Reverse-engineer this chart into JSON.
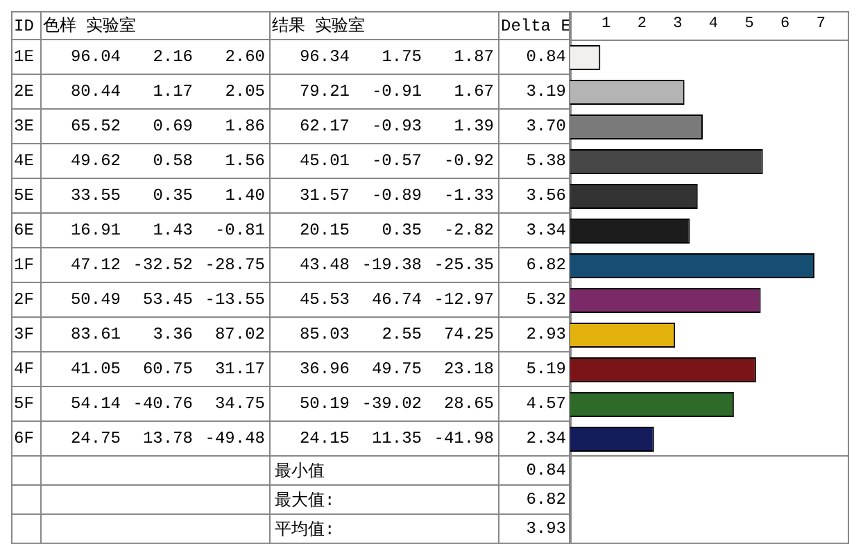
{
  "chart_data": {
    "type": "bar",
    "orientation": "horizontal",
    "categories": [
      "1E",
      "2E",
      "3E",
      "4E",
      "5E",
      "6E",
      "1F",
      "2F",
      "3F",
      "4F",
      "5F",
      "6F"
    ],
    "values": [
      0.84,
      3.19,
      3.7,
      5.38,
      3.56,
      3.34,
      6.82,
      5.32,
      2.93,
      5.19,
      4.57,
      2.34
    ],
    "value_labels": [
      "0.84",
      "3.19",
      "3.70",
      "5.38",
      "3.56",
      "3.34",
      "6.82",
      "5.32",
      "2.93",
      "5.19",
      "4.57",
      "2.34"
    ],
    "colors": [
      "#f2f0ee",
      "#b4b4b4",
      "#7a7a7a",
      "#474747",
      "#333333",
      "#1c1c1c",
      "#154e72",
      "#7b2a68",
      "#e3b20c",
      "#7a1416",
      "#2e6b28",
      "#141c5c"
    ],
    "x2lim": [
      0,
      7.75
    ],
    "x2ticks": [
      1,
      2,
      3,
      4,
      5,
      6,
      7
    ],
    "grid": false,
    "legend": false,
    "annotations": [
      "ID",
      "色样 实验室",
      "结果 实验室",
      "Delta E",
      "96.04",
      "2.16",
      "2.60",
      "96.34",
      "1.75",
      "1.87",
      "80.44",
      "1.17",
      "2.05",
      "79.21",
      "-0.91",
      "1.67",
      "65.52",
      "0.69",
      "1.86",
      "62.17",
      "-0.93",
      "1.39",
      "49.62",
      "0.58",
      "1.56",
      "45.01",
      "-0.57",
      "-0.92",
      "33.55",
      "0.35",
      "1.40",
      "31.57",
      "-0.89",
      "-1.33",
      "16.91",
      "1.43",
      "-0.81",
      "20.15",
      "0.35",
      "-2.82",
      "47.12",
      "-32.52",
      "-28.75",
      "43.48",
      "-19.38",
      "-25.35",
      "50.49",
      "53.45",
      "-13.55",
      "45.53",
      "46.74",
      "-12.97",
      "83.61",
      "3.36",
      "87.02",
      "85.03",
      "2.55",
      "74.25",
      "41.05",
      "60.75",
      "31.17",
      "36.96",
      "49.75",
      "23.18",
      "54.14",
      "-40.76",
      "34.75",
      "50.19",
      "-39.02",
      "28.65",
      "24.75",
      "13.78",
      "-49.48",
      "24.15",
      "11.35",
      "-41.98",
      "最小值",
      "0.84",
      "最大值:",
      "6.82",
      "平均值:",
      "3.93"
    ]
  }
}
